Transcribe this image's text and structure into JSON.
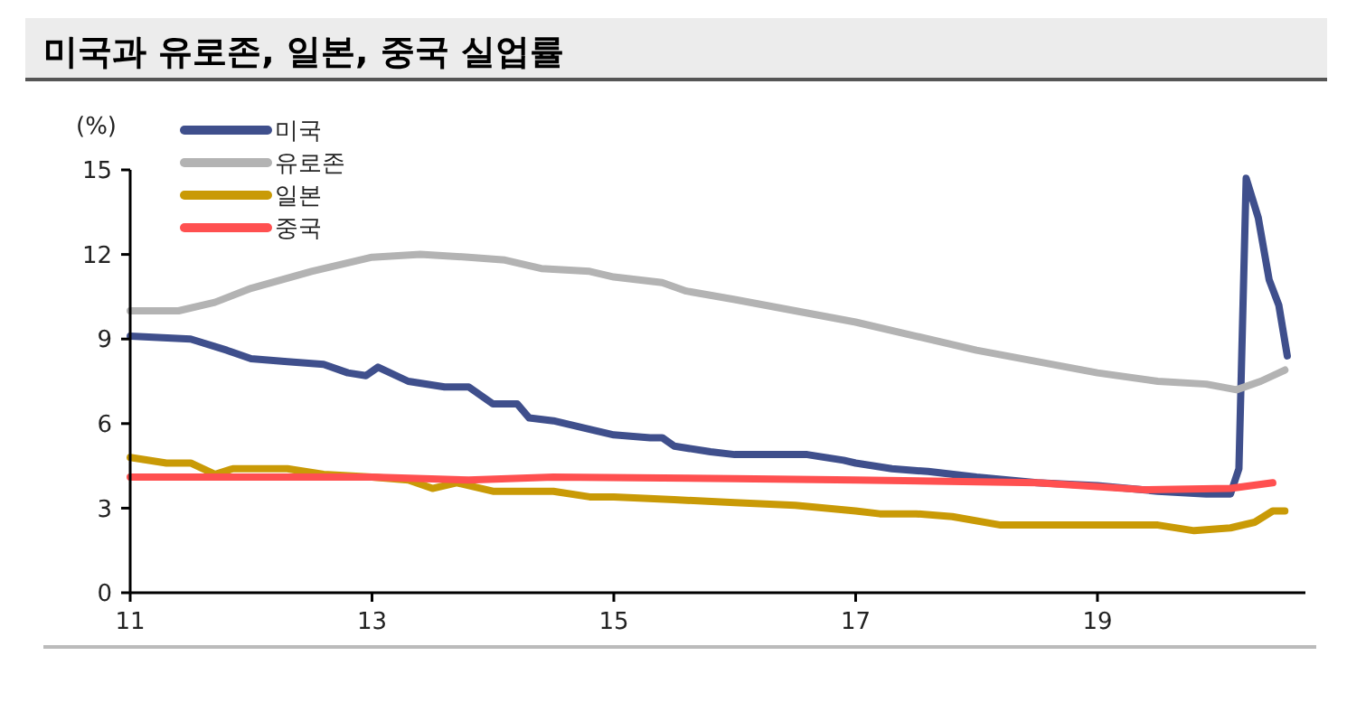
{
  "chart_data": {
    "type": "line",
    "title": "미국과 유로존, 일본, 중국 실업률",
    "ylabel": "(%)",
    "xlim": [
      11,
      20.72
    ],
    "xticks": [
      11,
      13,
      15,
      17,
      19
    ],
    "ylim": [
      0,
      15
    ],
    "yticks": [
      0,
      3,
      6,
      9,
      12,
      15
    ],
    "grid": false,
    "legend": "top left",
    "line_style": "solid",
    "marker": "none",
    "series": [
      {
        "name": "미국",
        "color": "#3f4f8c",
        "x": [
          11,
          11.5,
          11.8,
          12,
          12.3,
          12.6,
          12.8,
          12.95,
          13.05,
          13.3,
          13.6,
          13.8,
          14,
          14.2,
          14.3,
          14.5,
          14.8,
          15,
          15.3,
          15.4,
          15.5,
          15.8,
          16,
          16.3,
          16.6,
          16.9,
          17,
          17.3,
          17.6,
          18,
          18.5,
          19,
          19.5,
          19.9,
          20.1,
          20.17,
          20.23,
          20.33,
          20.42,
          20.5,
          20.57
        ],
        "values": [
          9.1,
          9.0,
          8.6,
          8.3,
          8.2,
          8.1,
          7.8,
          7.7,
          8.0,
          7.5,
          7.3,
          7.3,
          6.7,
          6.7,
          6.2,
          6.1,
          5.8,
          5.6,
          5.5,
          5.5,
          5.2,
          5.0,
          4.9,
          4.9,
          4.9,
          4.7,
          4.6,
          4.4,
          4.3,
          4.1,
          3.9,
          3.8,
          3.6,
          3.5,
          3.5,
          4.4,
          14.7,
          13.3,
          11.1,
          10.2,
          8.4
        ]
      },
      {
        "name": "유로존",
        "color": "#b3b3b3",
        "x": [
          11,
          11.4,
          11.7,
          12,
          12.5,
          13,
          13.4,
          13.8,
          14.1,
          14.4,
          14.8,
          15,
          15.4,
          15.6,
          16,
          16.5,
          17,
          17.5,
          18,
          18.5,
          19,
          19.5,
          19.9,
          20.15,
          20.35,
          20.55
        ],
        "values": [
          10.0,
          10.0,
          10.3,
          10.8,
          11.4,
          11.9,
          12.0,
          11.9,
          11.8,
          11.5,
          11.4,
          11.2,
          11.0,
          10.7,
          10.4,
          10.0,
          9.6,
          9.1,
          8.6,
          8.2,
          7.8,
          7.5,
          7.4,
          7.2,
          7.5,
          7.9
        ]
      },
      {
        "name": "일본",
        "color": "#c99a06",
        "x": [
          11,
          11.3,
          11.5,
          11.7,
          11.85,
          12.3,
          12.6,
          13,
          13.3,
          13.5,
          13.7,
          14,
          14.3,
          14.5,
          14.8,
          15,
          15.5,
          16,
          16.5,
          17,
          17.2,
          17.5,
          17.8,
          18.2,
          18.6,
          19,
          19.5,
          19.8,
          20.1,
          20.3,
          20.45,
          20.55
        ],
        "values": [
          4.8,
          4.6,
          4.6,
          4.2,
          4.4,
          4.4,
          4.2,
          4.1,
          4.0,
          3.7,
          3.9,
          3.6,
          3.6,
          3.6,
          3.4,
          3.4,
          3.3,
          3.2,
          3.1,
          2.9,
          2.8,
          2.8,
          2.7,
          2.4,
          2.4,
          2.4,
          2.4,
          2.2,
          2.3,
          2.5,
          2.9,
          2.9
        ]
      },
      {
        "name": "중국",
        "color": "#ff5050",
        "x": [
          11,
          13,
          13.8,
          14.5,
          16,
          17,
          18.5,
          19.4,
          20.1,
          20.45
        ],
        "values": [
          4.1,
          4.1,
          4.0,
          4.1,
          4.05,
          4.0,
          3.9,
          3.65,
          3.7,
          3.9
        ]
      }
    ]
  }
}
